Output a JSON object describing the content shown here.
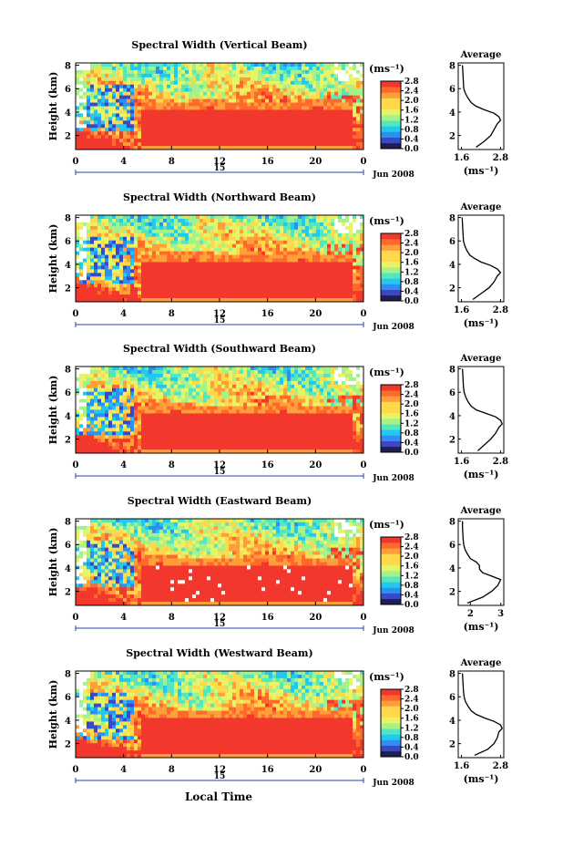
{
  "figure": {
    "xlabel": "Local Time",
    "date_label": "Jun 2008",
    "day_label": "15",
    "colors": {
      "colorbar": [
        "#ffffff",
        "#1e1e50",
        "#3a48c8",
        "#2f8ff0",
        "#22c8ee",
        "#55e6c0",
        "#a6f28a",
        "#e6f568",
        "#ffd84c",
        "#ff9f3a",
        "#ff6a2c",
        "#f2382c"
      ],
      "line": "#000000",
      "axis": "#000000",
      "time_axis_blue": "#2b3fa8"
    }
  },
  "chart_data": [
    {
      "type": "heatmap",
      "title": "Spectral Width (Vertical Beam)",
      "ylabel": "Height (km)",
      "x_ticks": [
        "0",
        "4",
        "8",
        "12",
        "16",
        "20",
        "0"
      ],
      "xlim": [
        0,
        24
      ],
      "y_ticks": [
        "2",
        "4",
        "6",
        "8"
      ],
      "ylim": [
        0.8,
        8.2
      ],
      "colorbar": {
        "unit": "(ms⁻¹)",
        "ticks": [
          "0.0",
          "0.4",
          "0.8",
          "1.2",
          "1.6",
          "2.0",
          "2.4",
          "2.8"
        ],
        "range": [
          0,
          2.8
        ]
      },
      "average_profile": {
        "title": "Average",
        "xlabel": "(ms⁻¹)",
        "x_ticks": [
          "1.6",
          "2.8"
        ],
        "xlim": [
          1.5,
          2.9
        ],
        "y_ticks": [
          "2",
          "4",
          "6",
          "8"
        ],
        "ylim": [
          0.8,
          8.2
        ],
        "height": [
          1.0,
          1.5,
          2.0,
          2.5,
          3.0,
          3.3,
          3.6,
          3.9,
          4.2,
          4.5,
          4.8,
          5.2,
          5.6,
          6.0,
          6.5,
          7.0,
          7.5,
          8.0
        ],
        "width": [
          2.05,
          2.3,
          2.5,
          2.6,
          2.7,
          2.8,
          2.75,
          2.6,
          2.3,
          2.05,
          1.9,
          1.8,
          1.72,
          1.67,
          1.66,
          1.65,
          1.64,
          1.63
        ]
      }
    },
    {
      "type": "heatmap",
      "title": "Spectral Width (Northward Beam)",
      "ylabel": "Height (km)",
      "x_ticks": [
        "0",
        "4",
        "8",
        "12",
        "16",
        "20",
        "0"
      ],
      "xlim": [
        0,
        24
      ],
      "y_ticks": [
        "2",
        "4",
        "6",
        "8"
      ],
      "ylim": [
        0.8,
        8.2
      ],
      "colorbar": {
        "unit": "(ms⁻¹)",
        "ticks": [
          "0.0",
          "0.4",
          "0.8",
          "1.2",
          "1.6",
          "2.0",
          "2.4",
          "2.8"
        ],
        "range": [
          0,
          2.8
        ]
      },
      "average_profile": {
        "title": "Average",
        "xlabel": "(ms⁻¹)",
        "x_ticks": [
          "1.6",
          "2.8"
        ],
        "xlim": [
          1.5,
          2.9
        ],
        "y_ticks": [
          "2",
          "4",
          "6",
          "8"
        ],
        "ylim": [
          0.8,
          8.2
        ],
        "height": [
          1.0,
          1.5,
          2.0,
          2.5,
          3.0,
          3.3,
          3.6,
          3.9,
          4.2,
          4.5,
          4.8,
          5.2,
          5.6,
          6.0,
          6.5,
          7.0,
          7.5,
          8.0
        ],
        "width": [
          1.95,
          2.2,
          2.45,
          2.6,
          2.7,
          2.8,
          2.7,
          2.5,
          2.2,
          2.0,
          1.85,
          1.76,
          1.7,
          1.66,
          1.65,
          1.64,
          1.63,
          1.62
        ]
      }
    },
    {
      "type": "heatmap",
      "title": "Spectral Width (Southward Beam)",
      "ylabel": "Height (km)",
      "x_ticks": [
        "0",
        "4",
        "8",
        "12",
        "16",
        "20",
        "0"
      ],
      "xlim": [
        0,
        24
      ],
      "y_ticks": [
        "2",
        "4",
        "6",
        "8"
      ],
      "ylim": [
        0.8,
        8.2
      ],
      "colorbar": {
        "unit": "(ms⁻¹)",
        "ticks": [
          "0.0",
          "0.4",
          "0.8",
          "1.2",
          "1.6",
          "2.0",
          "2.4",
          "2.8"
        ],
        "range": [
          0,
          2.8
        ]
      },
      "average_profile": {
        "title": "Average",
        "xlabel": "(ms⁻¹)",
        "x_ticks": [
          "1.6",
          "2.8"
        ],
        "xlim": [
          1.5,
          2.9
        ],
        "y_ticks": [
          "2",
          "4",
          "6",
          "8"
        ],
        "ylim": [
          0.8,
          8.2
        ],
        "height": [
          1.0,
          1.5,
          2.0,
          2.5,
          3.0,
          3.3,
          3.6,
          3.9,
          4.2,
          4.5,
          4.8,
          5.2,
          5.6,
          6.0,
          6.5,
          7.0,
          7.5,
          8.0
        ],
        "width": [
          2.1,
          2.3,
          2.5,
          2.65,
          2.75,
          2.85,
          2.8,
          2.65,
          2.35,
          2.05,
          1.9,
          1.8,
          1.73,
          1.68,
          1.66,
          1.65,
          1.64,
          1.63
        ]
      }
    },
    {
      "type": "heatmap",
      "title": "Spectral Width (Eastward Beam)",
      "ylabel": "Height (km)",
      "x_ticks": [
        "0",
        "4",
        "8",
        "12",
        "16",
        "20",
        "0"
      ],
      "xlim": [
        0,
        24
      ],
      "y_ticks": [
        "2",
        "4",
        "6",
        "8"
      ],
      "ylim": [
        0.8,
        8.2
      ],
      "colorbar": {
        "unit": "(ms⁻¹)",
        "ticks": [
          "0.0",
          "0.4",
          "0.8",
          "1.2",
          "1.6",
          "2.0",
          "2.4",
          "2.8"
        ],
        "range": [
          0,
          2.8
        ]
      },
      "average_profile": {
        "title": "Average",
        "xlabel": "(ms⁻¹)",
        "x_ticks": [
          "2",
          "3"
        ],
        "xlim": [
          1.6,
          3.1
        ],
        "y_ticks": [
          "2",
          "4",
          "6",
          "8"
        ],
        "ylim": [
          0.8,
          8.2
        ],
        "height": [
          1.0,
          1.5,
          2.0,
          2.5,
          3.0,
          3.3,
          3.6,
          3.9,
          4.2,
          4.5,
          4.8,
          5.2,
          5.6,
          6.0,
          6.5,
          7.0,
          7.5,
          8.0
        ],
        "width": [
          1.9,
          2.4,
          2.7,
          2.9,
          3.0,
          2.7,
          2.4,
          2.3,
          2.3,
          2.2,
          2.0,
          1.9,
          1.82,
          1.78,
          1.76,
          1.75,
          1.74,
          1.74
        ]
      }
    },
    {
      "type": "heatmap",
      "title": "Spectral Width (Westward Beam)",
      "ylabel": "Height (km)",
      "x_ticks": [
        "0",
        "4",
        "8",
        "12",
        "16",
        "20",
        "0"
      ],
      "xlim": [
        0,
        24
      ],
      "y_ticks": [
        "2",
        "4",
        "6",
        "8"
      ],
      "ylim": [
        0.8,
        8.2
      ],
      "colorbar": {
        "unit": "(ms⁻¹)",
        "ticks": [
          "0.0",
          "0.4",
          "0.8",
          "1.2",
          "1.6",
          "2.0",
          "2.4",
          "2.8"
        ],
        "range": [
          0,
          2.8
        ]
      },
      "average_profile": {
        "title": "Average",
        "xlabel": "(ms⁻¹)",
        "x_ticks": [
          "1.6",
          "2.8"
        ],
        "xlim": [
          1.5,
          2.9
        ],
        "y_ticks": [
          "2",
          "4",
          "6",
          "8"
        ],
        "ylim": [
          0.8,
          8.2
        ],
        "height": [
          1.0,
          1.5,
          2.0,
          2.5,
          3.0,
          3.3,
          3.6,
          3.9,
          4.2,
          4.5,
          4.8,
          5.2,
          5.6,
          6.0,
          6.5,
          7.0,
          7.5,
          8.0
        ],
        "width": [
          2.0,
          2.4,
          2.6,
          2.7,
          2.75,
          2.85,
          2.8,
          2.6,
          2.3,
          2.05,
          1.9,
          1.8,
          1.72,
          1.68,
          1.66,
          1.65,
          1.64,
          1.63
        ]
      }
    }
  ]
}
